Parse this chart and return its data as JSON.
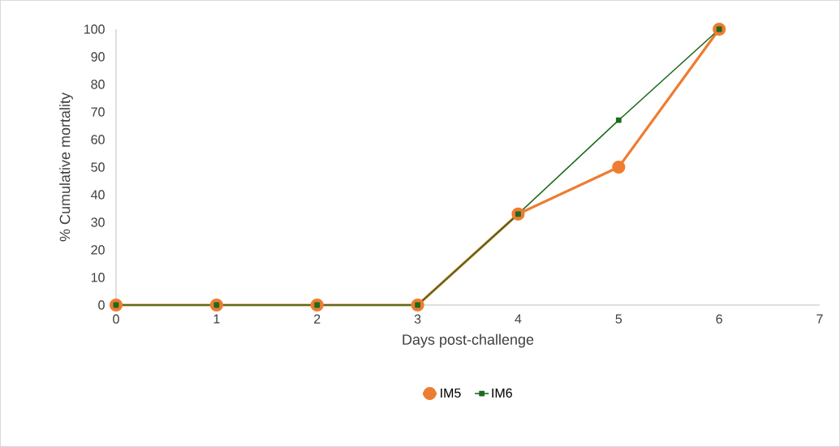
{
  "chart_data": {
    "type": "line",
    "xlabel": "Days post-challenge",
    "ylabel": "% Cumulative mortality",
    "x": [
      0,
      1,
      2,
      3,
      4,
      5,
      6
    ],
    "series": [
      {
        "name": "IM5",
        "color": "#ed7d31",
        "values": [
          0,
          0,
          0,
          0,
          33,
          50,
          100
        ],
        "marker": "circle"
      },
      {
        "name": "IM6",
        "color": "#1e6b1e",
        "values": [
          0,
          0,
          0,
          0,
          33,
          67,
          100
        ],
        "marker": "square"
      }
    ],
    "xlim": [
      0,
      7
    ],
    "ylim": [
      0,
      100
    ],
    "xticks": [
      0,
      1,
      2,
      3,
      4,
      5,
      6,
      7
    ],
    "yticks": [
      0,
      10,
      20,
      30,
      40,
      50,
      60,
      70,
      80,
      90,
      100
    ],
    "grid": false,
    "legend": "bottom"
  }
}
